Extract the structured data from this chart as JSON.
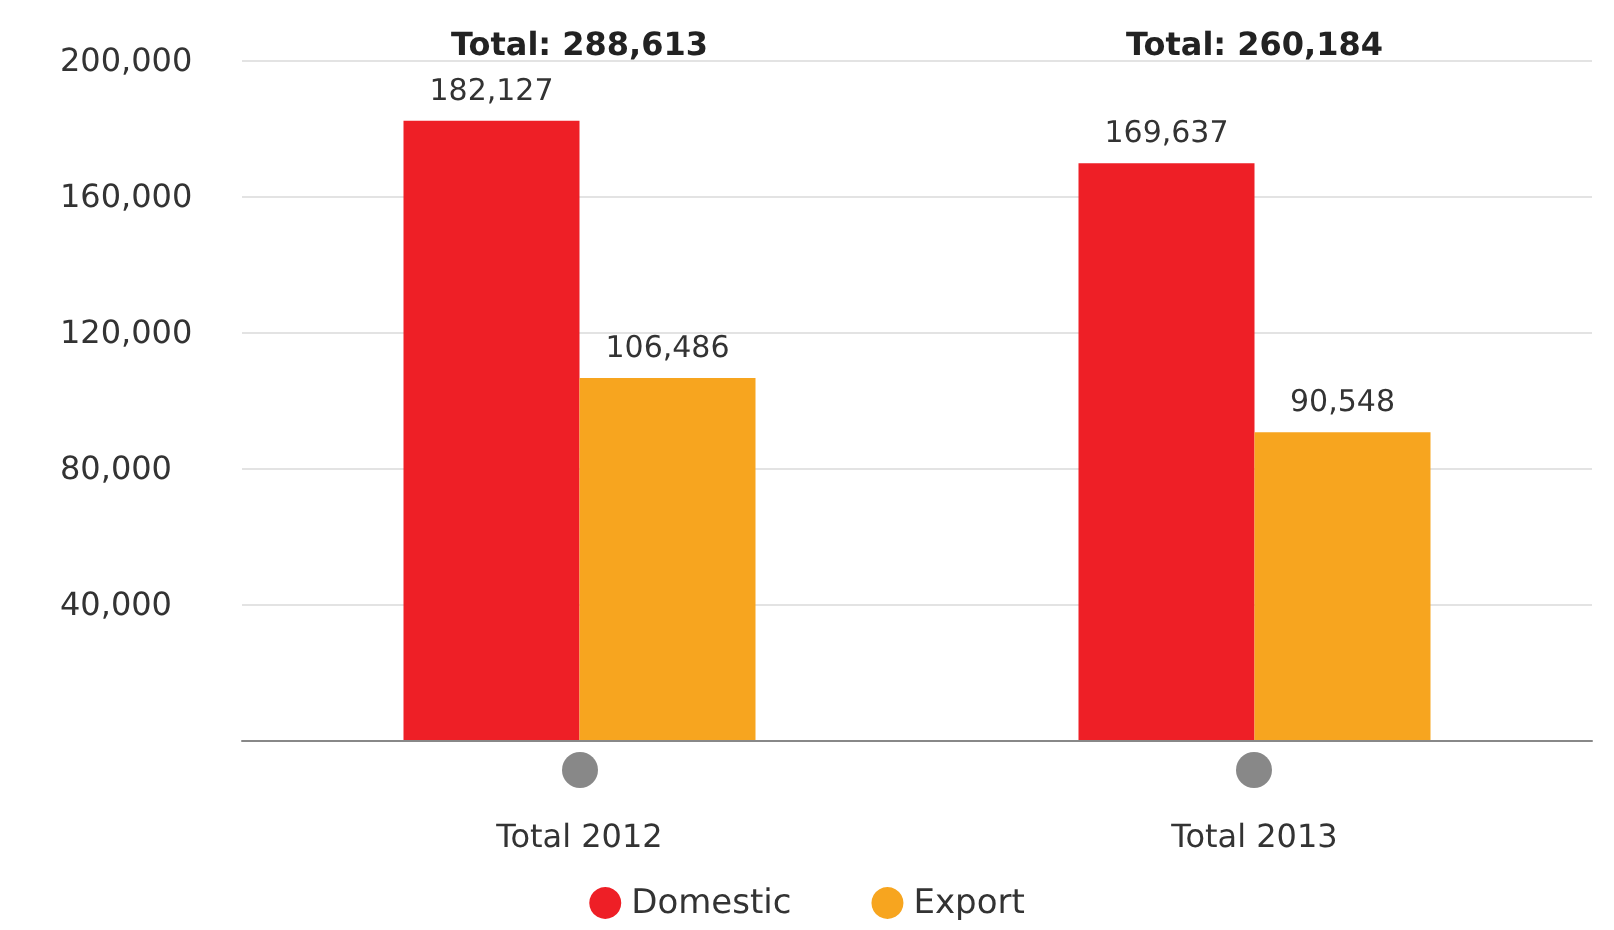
{
  "chart_data": {
    "type": "bar",
    "categories": [
      "Total 2012",
      "Total 2013"
    ],
    "series": [
      {
        "name": "Domestic",
        "color": "#ee1f26",
        "values": [
          182127,
          169637
        ],
        "value_labels": [
          "182,127",
          "169,637"
        ]
      },
      {
        "name": "Export",
        "color": "#f7a51f",
        "values": [
          106486,
          90548
        ],
        "value_labels": [
          "106,486",
          "90,548"
        ]
      }
    ],
    "ylim": [
      0,
      200000
    ],
    "yticks": [
      {
        "value": 40000,
        "label": "40,000"
      },
      {
        "value": 80000,
        "label": "80,000"
      },
      {
        "value": 120000,
        "label": "120,000"
      },
      {
        "value": 160000,
        "label": "160,000"
      },
      {
        "value": 200000,
        "label": "200,000"
      }
    ],
    "grid": "y",
    "legend": "bottom",
    "totals": [
      "Total: 288,613",
      "Total: 260,184"
    ]
  }
}
